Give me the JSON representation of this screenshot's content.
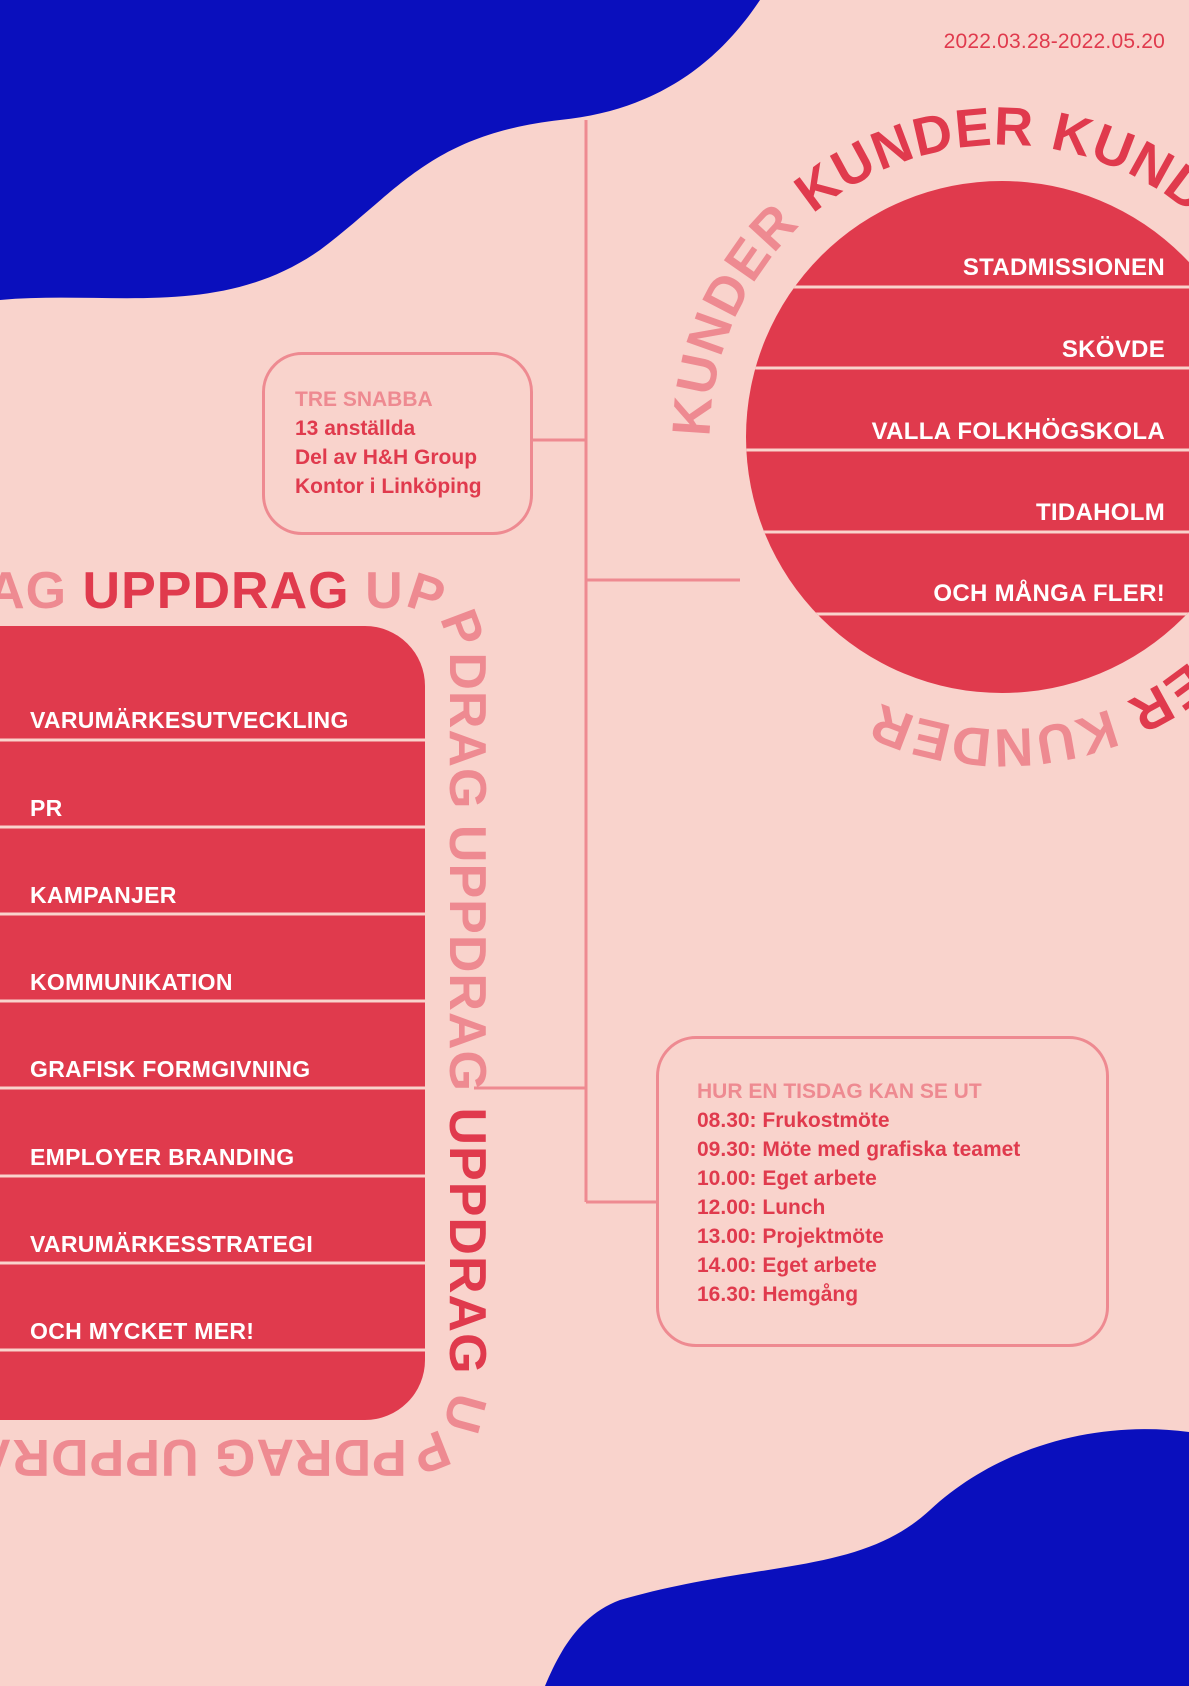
{
  "date_range": "2022.03.28-2022.05.20",
  "colors": {
    "background": "#f9d3cc",
    "blue": "#0a0fbd",
    "red": "#e03a4d",
    "pink": "#ee8a91",
    "white": "#ffffff"
  },
  "facts": {
    "heading": "TRE SNABBA",
    "lines": [
      "13 anställda",
      "Del av H&H Group",
      "Kontor i Linköping"
    ]
  },
  "kunder": {
    "ring_word": "KUNDER",
    "items": [
      "STADMISSIONEN",
      "SKÖVDE",
      "VALLA FOLKHÖGSKOLA",
      "TIDAHOLM",
      "OCH MÅNGA FLER!"
    ]
  },
  "uppdrag": {
    "ring_word": "UPPDRAG",
    "items": [
      "VARUMÄRKESUTVECKLING",
      "PR",
      "KAMPANJER",
      "KOMMUNIKATION",
      "GRAFISK FORMGIVNING",
      "EMPLOYER BRANDING",
      "VARUMÄRKESSTRATEGI",
      "OCH MYCKET MER!"
    ]
  },
  "schedule": {
    "heading": "HUR EN TISDAG KAN SE UT",
    "lines": [
      "08.30: Frukostmöte",
      "09.30: Möte med grafiska teamet",
      "10.00: Eget arbete",
      "12.00: Lunch",
      "13.00: Projektmöte",
      "14.00: Eget arbete",
      "16.30: Hemgång"
    ]
  }
}
